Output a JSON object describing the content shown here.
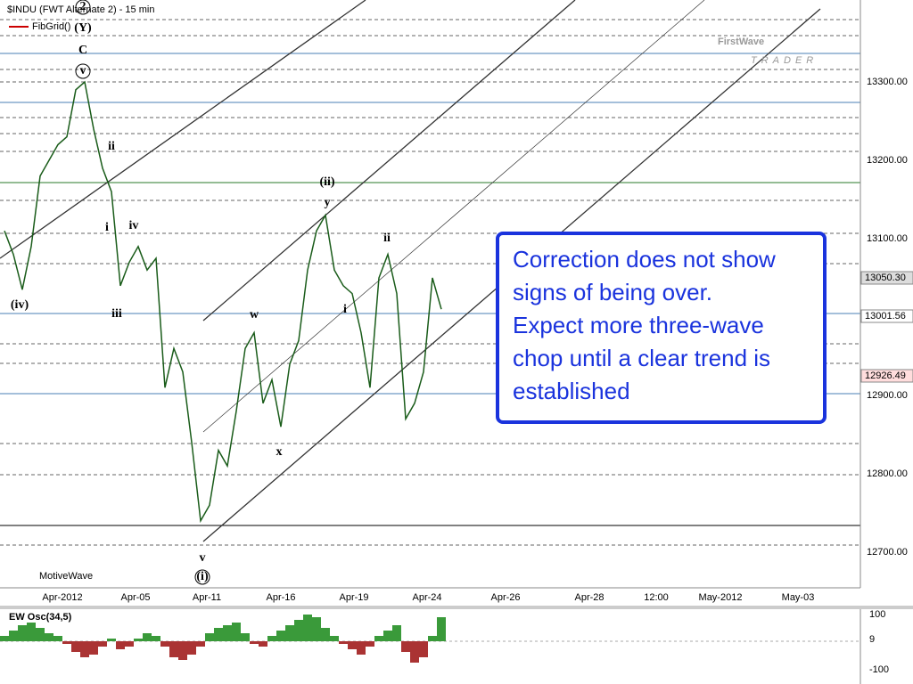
{
  "header": {
    "title": "$INDU (FWT Alternate 2) - 15 min",
    "indicator": "FibGrid()",
    "footer": "MotiveWave"
  },
  "logo": {
    "name": "FirstWave",
    "tag": "TRADER"
  },
  "y_axis": [
    "13300.00",
    "13200.00",
    "13100.00",
    "12900.00",
    "12800.00",
    "12700.00"
  ],
  "price_tags": [
    "13050.30",
    "13001.56",
    "12926.49"
  ],
  "x_axis": [
    "Apr-2012",
    "Apr-05",
    "Apr-11",
    "Apr-16",
    "Apr-19",
    "Apr-24",
    "Apr-26",
    "Apr-28",
    "12:00",
    "May-2012",
    "May-03"
  ],
  "waves": [
    "2",
    "(Y)",
    "C",
    "v",
    "ii",
    "i",
    "iv",
    "(iv)",
    "iii",
    "w",
    "(ii)",
    "y",
    "i",
    "ii",
    "x",
    "v",
    "(i)"
  ],
  "annotation": [
    "Correction does not show",
    "signs of being over.",
    "Expect more three-wave",
    "chop until a clear trend is",
    "established"
  ],
  "price": [
    13110,
    13080,
    13035,
    13090,
    13180,
    13200,
    13220,
    13230,
    13290,
    13300,
    13240,
    13190,
    13160,
    13040,
    13070,
    13090,
    13060,
    13075,
    12910,
    12960,
    12930,
    12840,
    12740,
    12760,
    12830,
    12810,
    12880,
    12960,
    12980,
    12890,
    12920,
    12860,
    12940,
    12970,
    13060,
    13110,
    13130,
    13060,
    13040,
    13030,
    12980,
    12910,
    13050,
    13080,
    13030,
    12870,
    12890,
    12930,
    13050,
    13010
  ],
  "oscillator": {
    "title": "EW Osc(34,5)",
    "ticks": [
      "100",
      "9",
      "-100"
    ],
    "values": [
      20,
      40,
      60,
      70,
      50,
      30,
      20,
      -10,
      -40,
      -60,
      -50,
      -20,
      10,
      -30,
      -20,
      10,
      30,
      20,
      -20,
      -60,
      -70,
      -50,
      -20,
      30,
      50,
      60,
      70,
      30,
      -10,
      -20,
      20,
      40,
      60,
      80,
      100,
      90,
      50,
      20,
      -10,
      -30,
      -50,
      -20,
      20,
      40,
      60,
      -40,
      -80,
      -60,
      20,
      90
    ]
  }
}
